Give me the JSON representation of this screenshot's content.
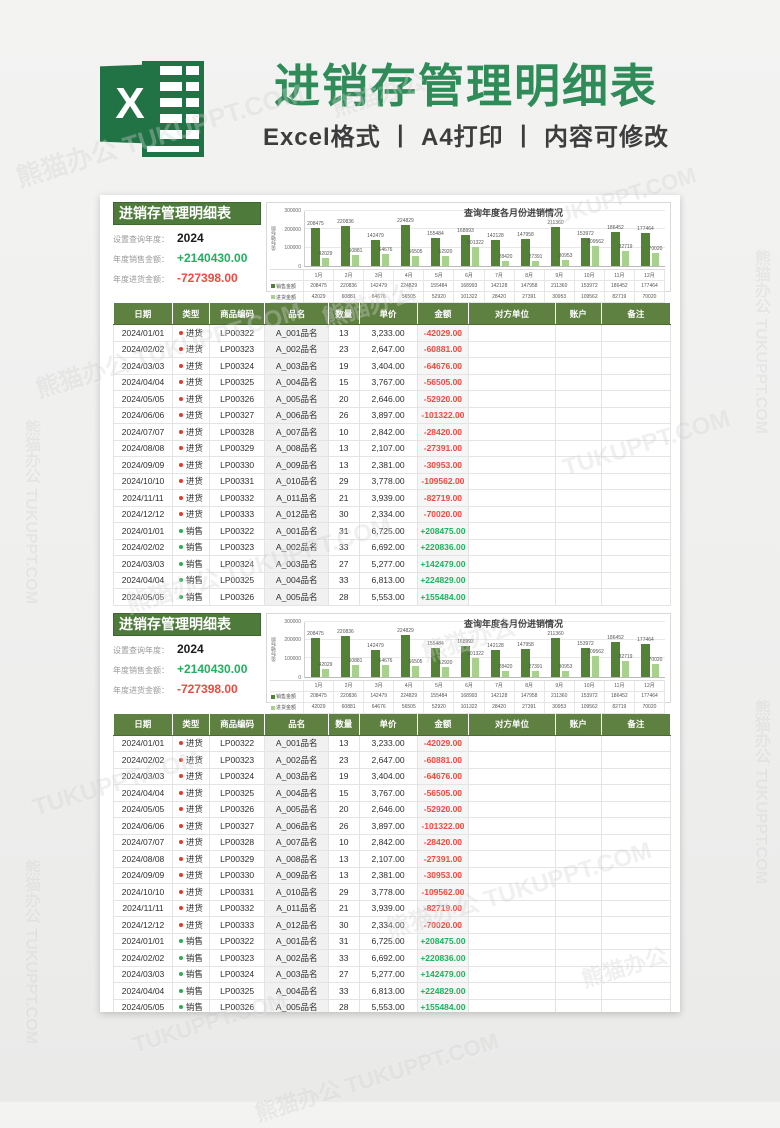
{
  "hero": {
    "title": "进销存管理明细表",
    "subtitle": "Excel格式 丨 A4打印 丨 内容可修改",
    "logo_letter": "X"
  },
  "panel": {
    "title": "进销存管理明细表",
    "year_label": "设置查询年度：",
    "year_value": "2024",
    "sales_label": "年度销售金额：",
    "sales_value": "+2140430.00",
    "purchase_label": "年度进货金额：",
    "purchase_value": "-727398.00"
  },
  "chart_data": {
    "type": "bar",
    "title": "查询年度各月份进销情况",
    "xlabel": "",
    "ylabel": "坐标轴标题",
    "ylim": [
      0,
      300000
    ],
    "yticks": [
      300000,
      200000,
      100000,
      0
    ],
    "grid": true,
    "legend_position": "table-left",
    "categories": [
      "1月",
      "2月",
      "3月",
      "4月",
      "5月",
      "6月",
      "7月",
      "8月",
      "9月",
      "10月",
      "11月",
      "12月"
    ],
    "series": [
      {
        "name": "销售金额",
        "color": "#538135",
        "values": [
          208475,
          220836,
          142479,
          224829,
          155484,
          168993,
          142128,
          147958,
          211360,
          153972,
          186452,
          177464
        ]
      },
      {
        "name": "进货金额",
        "color": "#a9d18e",
        "values": [
          42029,
          60881,
          64676,
          56505,
          52920,
          101322,
          28420,
          27391,
          30953,
          109562,
          82719,
          70020
        ]
      }
    ]
  },
  "table": {
    "headers": [
      "日期",
      "类型",
      "商品编码",
      "品名",
      "数量",
      "单价",
      "金额",
      "对方单位",
      "账户",
      "备注"
    ],
    "rows": [
      [
        "2024/01/01",
        "进货",
        "LP00322",
        "A_001品名",
        "13",
        "3,233.00",
        "-42029.00",
        "",
        "",
        ""
      ],
      [
        "2024/02/02",
        "进货",
        "LP00323",
        "A_002品名",
        "23",
        "2,647.00",
        "-60881.00",
        "",
        "",
        ""
      ],
      [
        "2024/03/03",
        "进货",
        "LP00324",
        "A_003品名",
        "19",
        "3,404.00",
        "-64676.00",
        "",
        "",
        ""
      ],
      [
        "2024/04/04",
        "进货",
        "LP00325",
        "A_004品名",
        "15",
        "3,767.00",
        "-56505.00",
        "",
        "",
        ""
      ],
      [
        "2024/05/05",
        "进货",
        "LP00326",
        "A_005品名",
        "20",
        "2,646.00",
        "-52920.00",
        "",
        "",
        ""
      ],
      [
        "2024/06/06",
        "进货",
        "LP00327",
        "A_006品名",
        "26",
        "3,897.00",
        "-101322.00",
        "",
        "",
        ""
      ],
      [
        "2024/07/07",
        "进货",
        "LP00328",
        "A_007品名",
        "10",
        "2,842.00",
        "-28420.00",
        "",
        "",
        ""
      ],
      [
        "2024/08/08",
        "进货",
        "LP00329",
        "A_008品名",
        "13",
        "2,107.00",
        "-27391.00",
        "",
        "",
        ""
      ],
      [
        "2024/09/09",
        "进货",
        "LP00330",
        "A_009品名",
        "13",
        "2,381.00",
        "-30953.00",
        "",
        "",
        ""
      ],
      [
        "2024/10/10",
        "进货",
        "LP00331",
        "A_010品名",
        "29",
        "3,778.00",
        "-109562.00",
        "",
        "",
        ""
      ],
      [
        "2024/11/11",
        "进货",
        "LP00332",
        "A_011品名",
        "21",
        "3,939.00",
        "-82719.00",
        "",
        "",
        ""
      ],
      [
        "2024/12/12",
        "进货",
        "LP00333",
        "A_012品名",
        "30",
        "2,334.00",
        "-70020.00",
        "",
        "",
        ""
      ],
      [
        "2024/01/01",
        "销售",
        "LP00322",
        "A_001品名",
        "31",
        "6,725.00",
        "+208475.00",
        "",
        "",
        ""
      ],
      [
        "2024/02/02",
        "销售",
        "LP00323",
        "A_002品名",
        "33",
        "6,692.00",
        "+220836.00",
        "",
        "",
        ""
      ],
      [
        "2024/03/03",
        "销售",
        "LP00324",
        "A_003品名",
        "27",
        "5,277.00",
        "+142479.00",
        "",
        "",
        ""
      ],
      [
        "2024/04/04",
        "销售",
        "LP00325",
        "A_004品名",
        "33",
        "6,813.00",
        "+224829.00",
        "",
        "",
        ""
      ],
      [
        "2024/05/05",
        "销售",
        "LP00326",
        "A_005品名",
        "28",
        "5,553.00",
        "+155484.00",
        "",
        "",
        ""
      ]
    ]
  },
  "watermark": {
    "brand": "熊猫办公",
    "site": "TUKUPPT.COM",
    "full": "熊猫办公 TUKUPPT.COM"
  },
  "colors": {
    "brand_green": "#217346",
    "title_green": "#2f8c58",
    "header_green": "#5e8040",
    "panel_green": "#4e7b3c",
    "bar_sales": "#538135",
    "bar_purchase": "#a9d18e",
    "positive": "#1db35c",
    "negative": "#f4483e",
    "dot_purchase": "#e23b2e",
    "dot_sale": "#27b050"
  }
}
